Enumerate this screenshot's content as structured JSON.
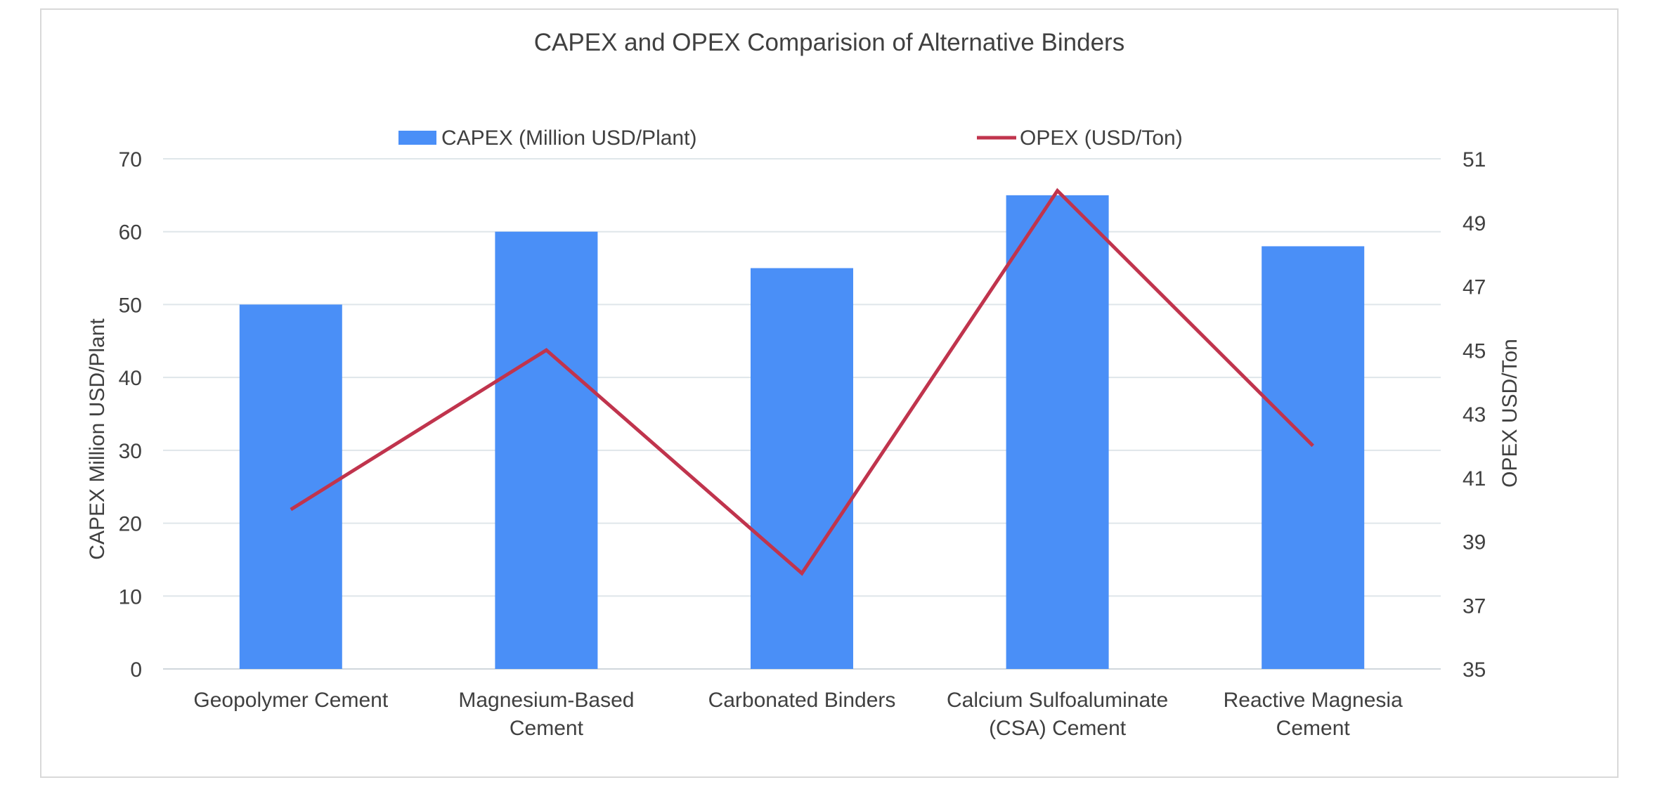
{
  "chart_data": {
    "type": "bar",
    "title": "CAPEX and OPEX Comparision of Alternative Binders",
    "categories": [
      [
        "Geopolymer Cement"
      ],
      [
        "Magnesium-Based",
        "Cement"
      ],
      [
        "Carbonated Binders"
      ],
      [
        "Calcium Sulfoaluminate",
        "(CSA) Cement"
      ],
      [
        "Reactive Magnesia",
        "Cement"
      ]
    ],
    "series": [
      {
        "name": "CAPEX (Million USD/Plant)",
        "type": "bar",
        "axis": "left",
        "values": [
          50,
          60,
          55,
          65,
          58
        ],
        "color": "#4a8ff7"
      },
      {
        "name": "OPEX (USD/Ton)",
        "type": "line",
        "axis": "right",
        "values": [
          40,
          45,
          38,
          50,
          42
        ],
        "color": "#c0344d"
      }
    ],
    "ylabel": "CAPEX Million USD/Plant",
    "y2label": "OPEX  USD/Ton",
    "ylim": [
      0,
      70
    ],
    "yticks": [
      0,
      10,
      20,
      30,
      40,
      50,
      60,
      70
    ],
    "y2lim": [
      35,
      51
    ],
    "y2ticks": [
      35,
      37,
      39,
      41,
      43,
      45,
      47,
      49,
      51
    ],
    "grid": true,
    "legend_position": "top"
  }
}
